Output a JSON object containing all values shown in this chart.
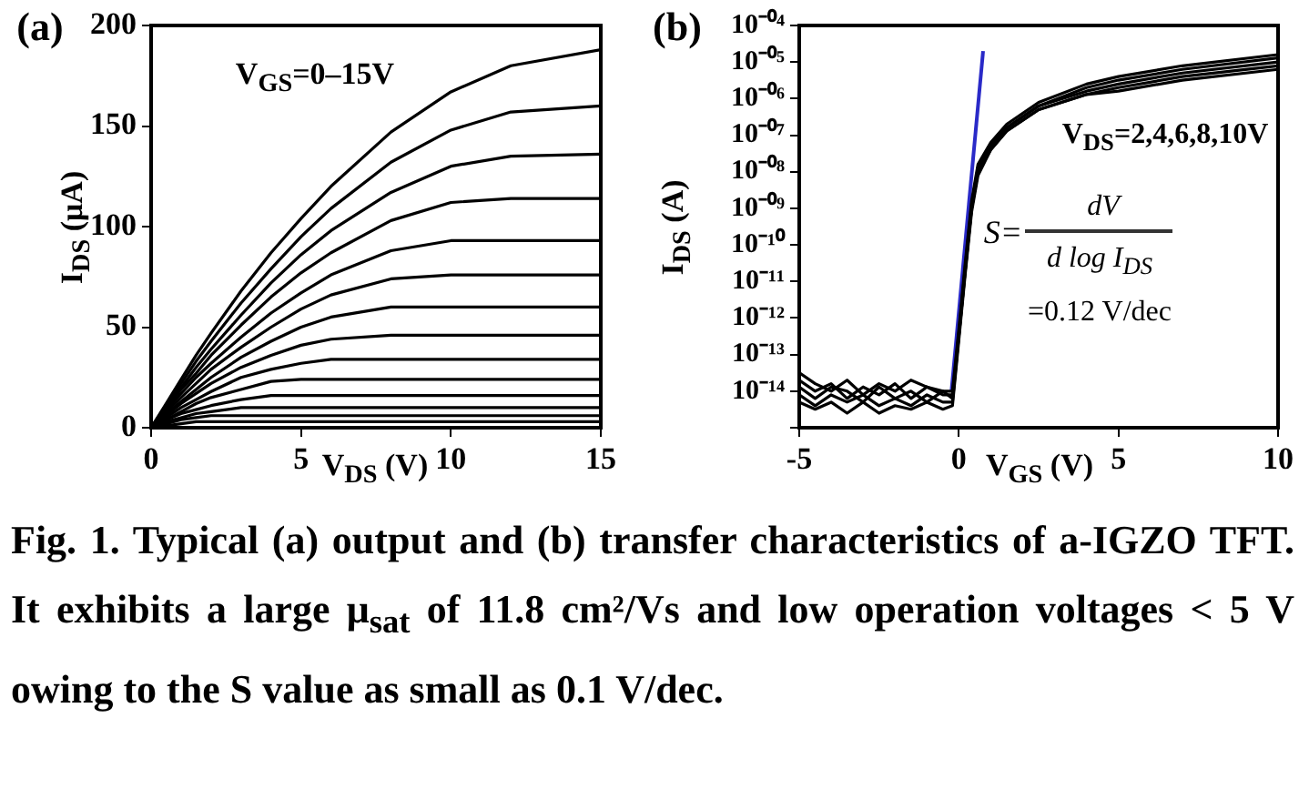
{
  "chart_data": [
    {
      "type": "line",
      "title": "(a)",
      "xlabel": "V$_{DS}$ (V)",
      "ylabel": "I$_{DS}$ (μA)",
      "annotations": [
        "V$_{GS}$=0–15V"
      ],
      "x": [
        0,
        0.5,
        1,
        1.5,
        2,
        3,
        4,
        5,
        6,
        8,
        10,
        12,
        15
      ],
      "series": [
        {
          "color": "#000000",
          "values": [
            0,
            12,
            24,
            36,
            47,
            68,
            87,
            104,
            120,
            147,
            167,
            180,
            188
          ]
        },
        {
          "color": "#000000",
          "values": [
            0,
            11,
            22,
            33,
            43,
            62,
            79,
            95,
            109,
            132,
            148,
            157,
            160
          ]
        },
        {
          "color": "#000000",
          "values": [
            0,
            10,
            20,
            30,
            39,
            56,
            72,
            86,
            98,
            117,
            130,
            135,
            136
          ]
        },
        {
          "color": "#000000",
          "values": [
            0,
            10,
            19,
            27,
            36,
            51,
            65,
            77,
            87,
            103,
            112,
            114,
            114
          ]
        },
        {
          "color": "#000000",
          "values": [
            0,
            9,
            17,
            25,
            32,
            45,
            57,
            67,
            76,
            88,
            93,
            93,
            93
          ]
        },
        {
          "color": "#000000",
          "values": [
            0,
            8,
            15,
            22,
            29,
            40,
            50,
            59,
            66,
            74,
            76,
            76,
            76
          ]
        },
        {
          "color": "#000000",
          "values": [
            0,
            7,
            13,
            19,
            25,
            35,
            43,
            50,
            55,
            60,
            60,
            60,
            60
          ]
        },
        {
          "color": "#000000",
          "values": [
            0,
            6,
            12,
            17,
            22,
            30,
            36,
            41,
            44,
            46,
            46,
            46,
            46
          ]
        },
        {
          "color": "#000000",
          "values": [
            0,
            5,
            10,
            14,
            18,
            25,
            29,
            32,
            34,
            34,
            34,
            34,
            34
          ]
        },
        {
          "color": "#000000",
          "values": [
            0,
            4,
            8,
            12,
            15,
            19,
            23,
            24,
            24,
            24,
            24,
            24,
            24
          ]
        },
        {
          "color": "#000000",
          "values": [
            0,
            4,
            7,
            9,
            11,
            14,
            16,
            16,
            16,
            16,
            16,
            16,
            16
          ]
        },
        {
          "color": "#000000",
          "values": [
            0,
            3,
            5,
            7,
            8,
            10,
            10,
            10,
            10,
            10,
            10,
            10,
            10
          ]
        },
        {
          "color": "#000000",
          "values": [
            0,
            2,
            4,
            5,
            6,
            6,
            6,
            6,
            6,
            6,
            6,
            6,
            6
          ]
        },
        {
          "color": "#000000",
          "values": [
            0,
            1,
            2,
            3,
            3,
            3,
            3,
            3,
            3,
            3,
            3,
            3,
            3
          ]
        }
      ],
      "xlim": [
        0,
        15
      ],
      "xticks": [
        0,
        5,
        10,
        15
      ],
      "ylim": [
        0,
        200
      ],
      "yticks": [
        0,
        50,
        100,
        150,
        200
      ],
      "grid": false,
      "legend": false,
      "marker": "none",
      "line_style": "solid"
    },
    {
      "type": "line",
      "title": "(b)",
      "xlabel": "V$_{GS}$ (V)",
      "ylabel": "I$_{DS}$ (A)",
      "log": "y",
      "annotations": [
        "V$_{DS}$=2,4,6,8,10V",
        "S=",
        "dV",
        "d log I$_{DS}$",
        "=0.12 V/dec"
      ],
      "x": [
        -5,
        -4.5,
        -4,
        -3.5,
        -3,
        -2.5,
        -2,
        -1.5,
        -1,
        -0.5,
        -0.2,
        0,
        0.2,
        0.4,
        0.6,
        1,
        1.5,
        2.5,
        4,
        5,
        7,
        10
      ],
      "series": [
        {
          "color": "#000000",
          "values": [
            3.2e-14,
            1.6e-14,
            1e-14,
            2e-14,
            7.9e-15,
            1.6e-14,
            1e-14,
            2e-14,
            1.3e-14,
            1e-14,
            1e-14,
            5e-13,
            3.2e-11,
            1.6e-09,
            1.6e-08,
            6.3e-08,
            2e-07,
            7.9e-07,
            2.5e-06,
            4e-06,
            7.9e-06,
            1.6e-05
          ]
        },
        {
          "color": "#000000",
          "values": [
            2e-14,
            1e-14,
            1.6e-14,
            6.3e-15,
            1.3e-14,
            7.9e-15,
            1.6e-14,
            6.3e-15,
            1.3e-14,
            7.9e-15,
            7.9e-15,
            4e-13,
            2.5e-11,
            1.3e-09,
            1.3e-08,
            5e-08,
            1.6e-07,
            6.3e-07,
            2e-06,
            3.2e-06,
            6.3e-06,
            1.3e-05
          ]
        },
        {
          "color": "#000000",
          "values": [
            1.3e-14,
            6.3e-15,
            1.3e-14,
            1e-14,
            5e-15,
            1.3e-14,
            6.3e-15,
            1e-14,
            5e-15,
            1e-14,
            6.3e-15,
            3.2e-13,
            2e-11,
            1e-09,
            1e-08,
            5e-08,
            1.6e-07,
            6.3e-07,
            1.6e-06,
            2.5e-06,
            5e-06,
            1e-05
          ]
        },
        {
          "color": "#000000",
          "values": [
            7.9e-15,
            4e-15,
            7.9e-15,
            5e-15,
            7.9e-15,
            4e-15,
            6.3e-15,
            4e-15,
            7.9e-15,
            5e-15,
            5e-15,
            3.2e-13,
            2e-11,
            1e-09,
            1e-08,
            4e-08,
            1.3e-07,
            5e-07,
            1.3e-06,
            2e-06,
            4e-06,
            7.9e-06
          ]
        },
        {
          "color": "#000000",
          "values": [
            5e-15,
            3.2e-15,
            5e-15,
            2.5e-15,
            5e-15,
            2.5e-15,
            4e-15,
            3.2e-15,
            5e-15,
            3.2e-15,
            4e-15,
            2.5e-13,
            1.6e-11,
            7.9e-10,
            7.9e-09,
            4e-08,
            1.3e-07,
            5e-07,
            1.3e-06,
            1.6e-06,
            3.2e-06,
            6.3e-06
          ]
        },
        {
          "type": "line",
          "color": "#2a2ac8",
          "x": [
            -0.23,
            0.76
          ],
          "values": [
            1e-14,
            2e-05
          ]
        }
      ],
      "xlim": [
        -5,
        10
      ],
      "xticks": [
        -5,
        0,
        5,
        10
      ],
      "ylim": [
        1e-15,
        0.0001
      ],
      "yticks": [
        {
          "value": 1e-15,
          "label": null
        },
        {
          "value": 1e-14,
          "label": "10⁻¹⁴"
        },
        {
          "value": 1e-13,
          "label": "10⁻¹³"
        },
        {
          "value": 1e-12,
          "label": "10⁻¹²"
        },
        {
          "value": 1e-11,
          "label": "10⁻¹¹"
        },
        {
          "value": 1e-10,
          "label": "10⁻¹⁰"
        },
        {
          "value": 1e-09,
          "label": "10⁻⁰⁹"
        },
        {
          "value": 1e-08,
          "label": "10⁻⁰⁸"
        },
        {
          "value": 1e-07,
          "label": "10⁻⁰⁷"
        },
        {
          "value": 1e-06,
          "label": "10⁻⁰⁶"
        },
        {
          "value": 1e-05,
          "label": "10⁻⁰⁵"
        },
        {
          "value": 0.0001,
          "label": "10⁻⁰⁴"
        }
      ],
      "grid": false,
      "legend": false,
      "marker": "none",
      "line_style": "solid"
    },
    {
      "type": "other",
      "annotations": [
        "Fig. 1.  Typical (a) output and (b) transfer characteristics of a-IGZO TFT. It exhibits a large μ$_{sat}$ of 11.8 cm²/Vs and low operation voltages < 5 V owing to the S value as small as 0.1 V/dec."
      ]
    }
  ]
}
